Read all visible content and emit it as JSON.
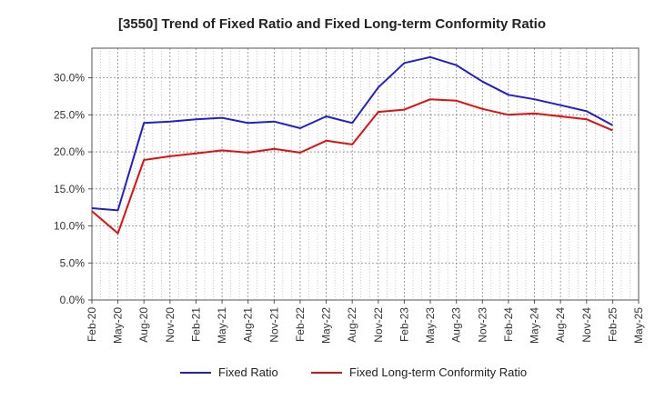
{
  "chart_data": {
    "type": "line",
    "title": "[3550]  Trend of Fixed Ratio and Fixed Long-term Conformity Ratio",
    "xlabel": "",
    "ylabel": "",
    "x": [
      "Feb-20",
      "May-20",
      "Aug-20",
      "Nov-20",
      "Feb-21",
      "May-21",
      "Aug-21",
      "Nov-21",
      "Feb-22",
      "May-22",
      "Aug-22",
      "Nov-22",
      "Feb-23",
      "May-23",
      "Aug-23",
      "Nov-23",
      "Feb-24",
      "May-24",
      "Aug-24",
      "Nov-24",
      "Feb-25"
    ],
    "x_ticks": [
      "Feb-20",
      "May-20",
      "Aug-20",
      "Nov-20",
      "Feb-21",
      "May-21",
      "Aug-21",
      "Nov-21",
      "Feb-22",
      "May-22",
      "Aug-22",
      "Nov-22",
      "Feb-23",
      "May-23",
      "Aug-23",
      "Nov-23",
      "Feb-24",
      "May-24",
      "Aug-24",
      "Nov-24",
      "Feb-25",
      "May-25"
    ],
    "y_ticks": [
      "0.0%",
      "5.0%",
      "10.0%",
      "15.0%",
      "20.0%",
      "25.0%",
      "30.0%"
    ],
    "ylim": [
      0,
      34
    ],
    "grid": true,
    "legend_position": "bottom",
    "series": [
      {
        "name": "Fixed Ratio",
        "color": "#1f1fcc",
        "values": [
          12.4,
          12.1,
          23.9,
          24.1,
          24.4,
          24.6,
          23.9,
          24.1,
          23.2,
          24.8,
          23.9,
          28.7,
          32.0,
          32.8,
          31.7,
          29.5,
          27.7,
          27.1,
          26.3,
          25.5,
          23.6
        ]
      },
      {
        "name": "Fixed Long-term Conformity Ratio",
        "color": "#e01010",
        "values": [
          12.0,
          9.0,
          18.9,
          19.4,
          19.8,
          20.2,
          19.9,
          20.4,
          19.9,
          21.5,
          21.0,
          25.4,
          25.7,
          27.1,
          26.9,
          25.8,
          25.0,
          25.2,
          24.8,
          24.4,
          22.9
        ]
      }
    ]
  }
}
